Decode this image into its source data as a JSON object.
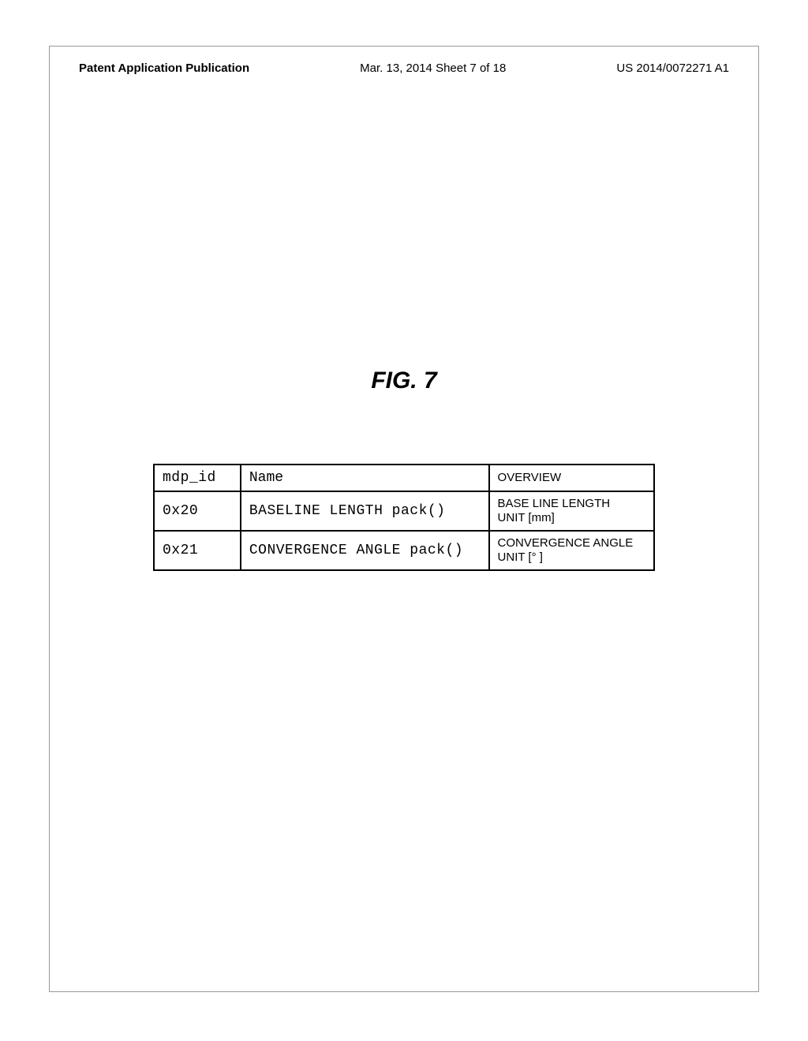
{
  "header": {
    "left": "Patent Application Publication",
    "center": "Mar. 13, 2014  Sheet 7 of 18",
    "right": "US 2014/0072271 A1"
  },
  "figure": {
    "label": "FIG. 7"
  },
  "table": {
    "columns": [
      "mdp_id",
      "Name",
      "OVERVIEW"
    ],
    "rows": [
      {
        "id": "0x20",
        "name": "BASELINE LENGTH pack()",
        "overview_line1": "BASE LINE LENGTH",
        "overview_line2": "UNIT [mm]"
      },
      {
        "id": "0x21",
        "name": "CONVERGENCE ANGLE pack()",
        "overview_line1": "CONVERGENCE ANGLE",
        "overview_line2": "UNIT [° ]"
      }
    ]
  }
}
